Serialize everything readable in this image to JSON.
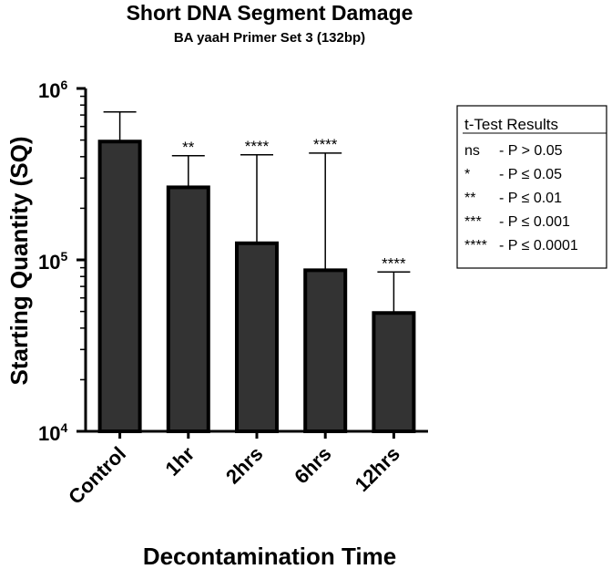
{
  "chart_data": {
    "type": "bar",
    "title": "Short DNA Segment Damage",
    "subtitle": "BA yaaH Primer Set 3 (132bp)",
    "xlabel": "Decontamination Time",
    "ylabel": "Starting Quantity (SQ)",
    "y_scale": "log",
    "ylim": [
      10000,
      1000000
    ],
    "y_ticks": [
      {
        "base": "10",
        "exp": "4",
        "value": 10000
      },
      {
        "base": "10",
        "exp": "5",
        "value": 100000
      },
      {
        "base": "10",
        "exp": "6",
        "value": 1000000
      }
    ],
    "categories": [
      "Control",
      "1hr",
      "2hrs",
      "6hrs",
      "12hrs"
    ],
    "values": [
      490000,
      265000,
      125000,
      87000,
      49000
    ],
    "error_upper": [
      730000,
      405000,
      410000,
      420000,
      85000
    ],
    "significance": [
      "",
      "**",
      "****",
      "****",
      "****"
    ],
    "bar_color": "#333333",
    "grid": false,
    "legend_position": "right",
    "legend": {
      "title": "t-Test Results",
      "rows": [
        {
          "sym": "ns",
          "text": "- P > 0.05"
        },
        {
          "sym": "*",
          "text": "-  P ≤ 0.05"
        },
        {
          "sym": "**",
          "text": "-  P ≤ 0.01"
        },
        {
          "sym": "***",
          "text": "-  P ≤ 0.001"
        },
        {
          "sym": "****",
          "text": "- P ≤ 0.0001"
        }
      ]
    }
  }
}
